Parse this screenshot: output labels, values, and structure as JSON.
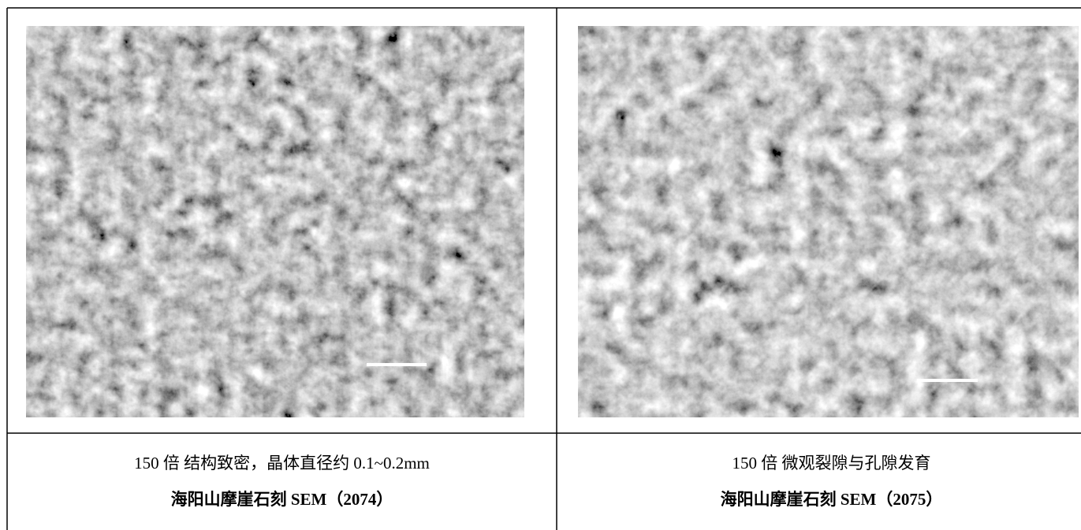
{
  "cells": [
    {
      "caption": "150 倍  结构致密，晶体直径约 0.1~0.2mm",
      "title": "海阳山摩崖石刻 SEM（2074）"
    },
    {
      "caption": "150 倍  微观裂隙与孔隙发育",
      "title": "海阳山摩崖石刻 SEM（2075）"
    }
  ]
}
